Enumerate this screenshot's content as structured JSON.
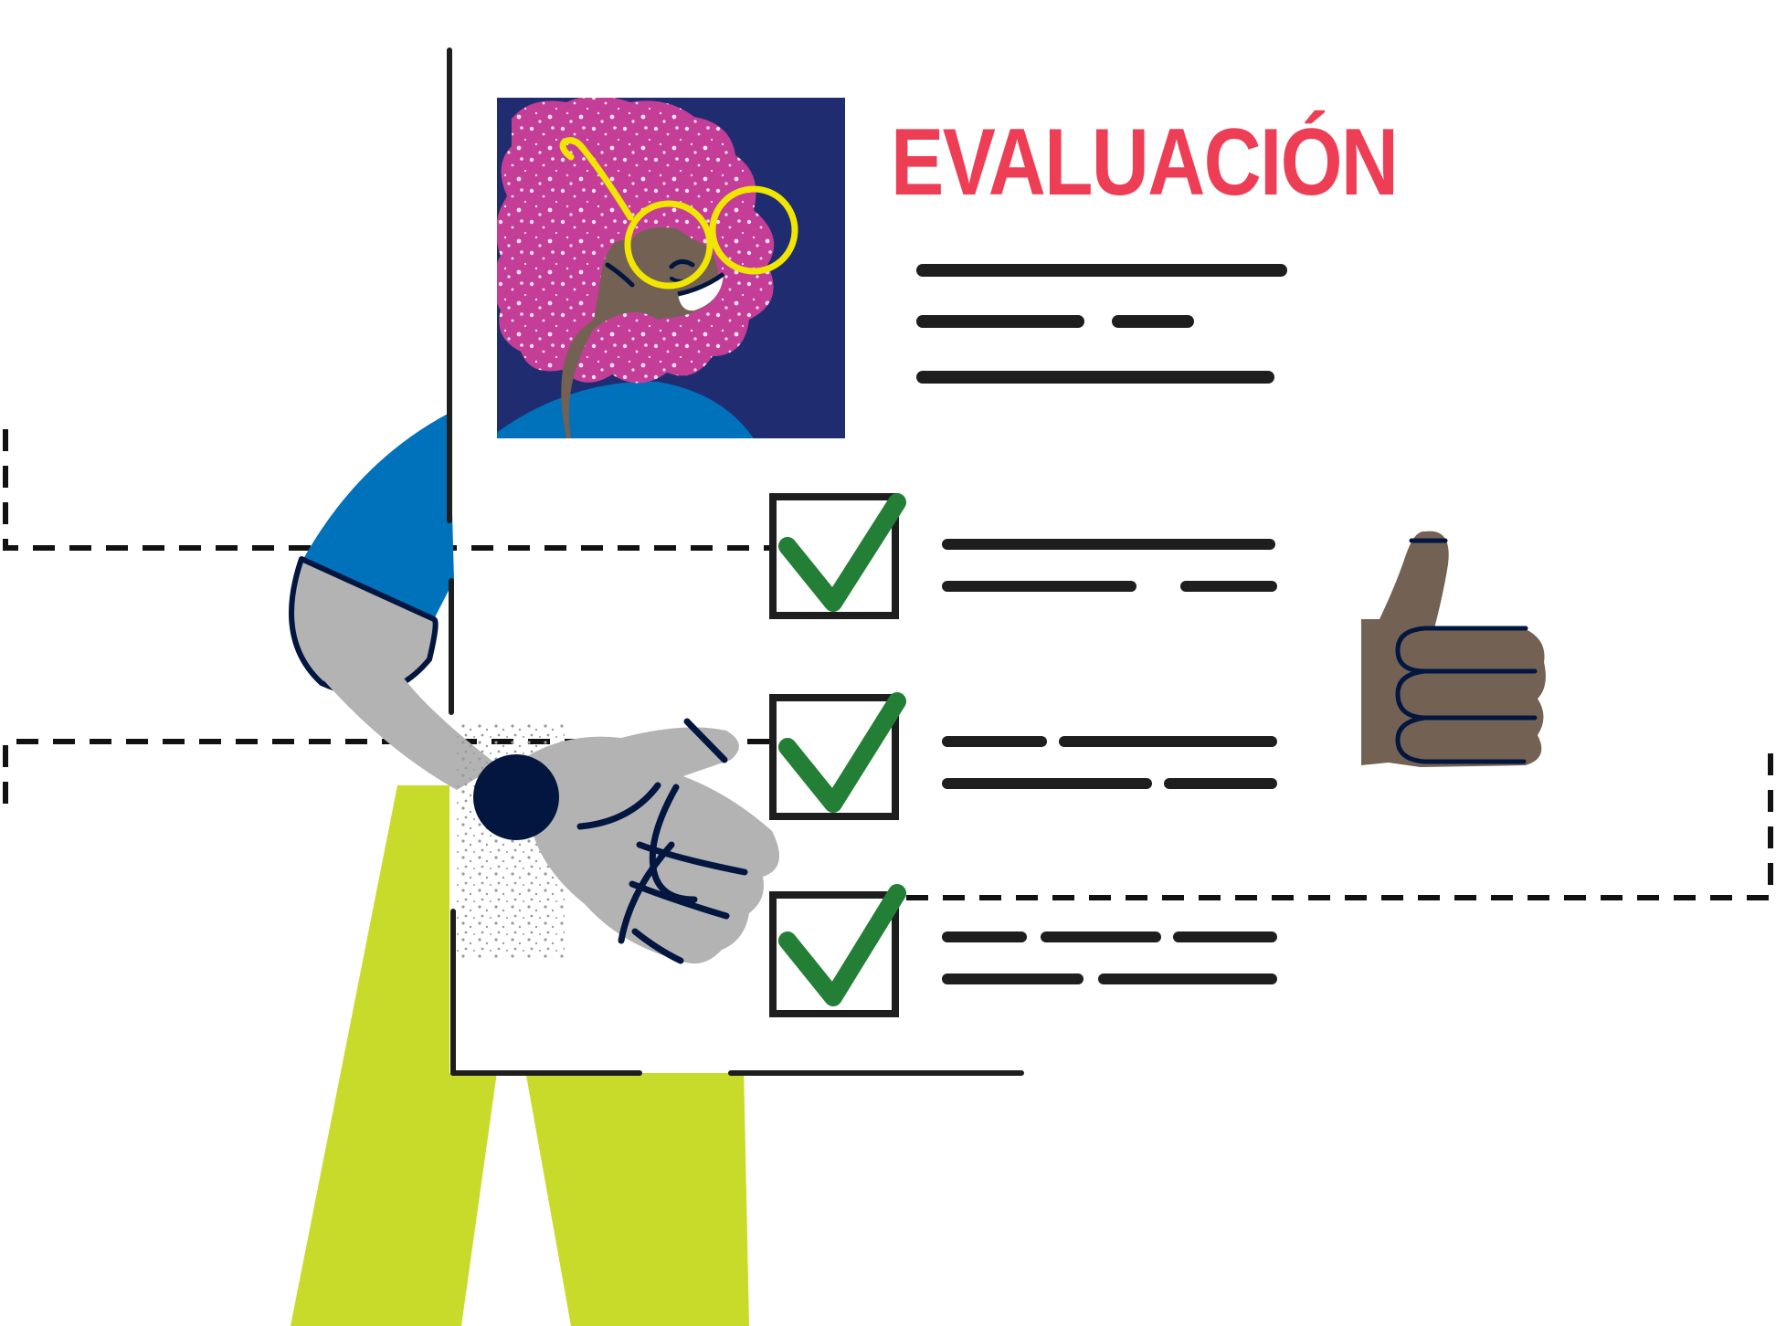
{
  "document": {
    "title": "EVALUACIÓN",
    "checklist_items_count": 3
  },
  "colors": {
    "title_red": "#ee3e55",
    "check_green": "#237f36",
    "ink": "#1e1e1e",
    "portrait_bg": "#1f2d70",
    "hair_magenta": "#c43e98",
    "glasses_yellow": "#f1e600",
    "skin_brown": "#736253",
    "sleeve_blue": "#0072bc",
    "glove_gray": "#b3b3b3",
    "navy": "#021640",
    "legs_lime": "#c8db2b"
  },
  "icons": [
    "checkbox-checked-icon",
    "thumbs-up-icon"
  ]
}
